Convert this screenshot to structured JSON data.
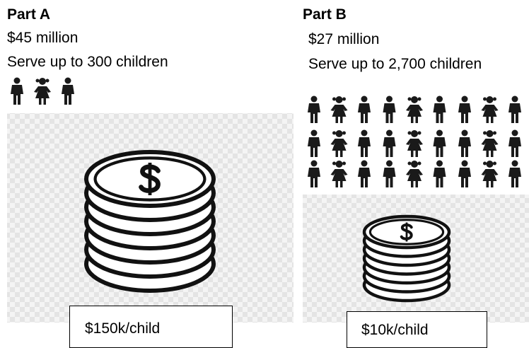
{
  "part_a": {
    "title": "Part A",
    "cost": "$45 million",
    "reach": "Serve up to 300 children",
    "per_child": "$150k/child"
  },
  "part_b": {
    "title": "Part B",
    "cost": "$27 million",
    "reach": "Serve up to 2,700 children",
    "per_child": "$10k/child"
  }
}
